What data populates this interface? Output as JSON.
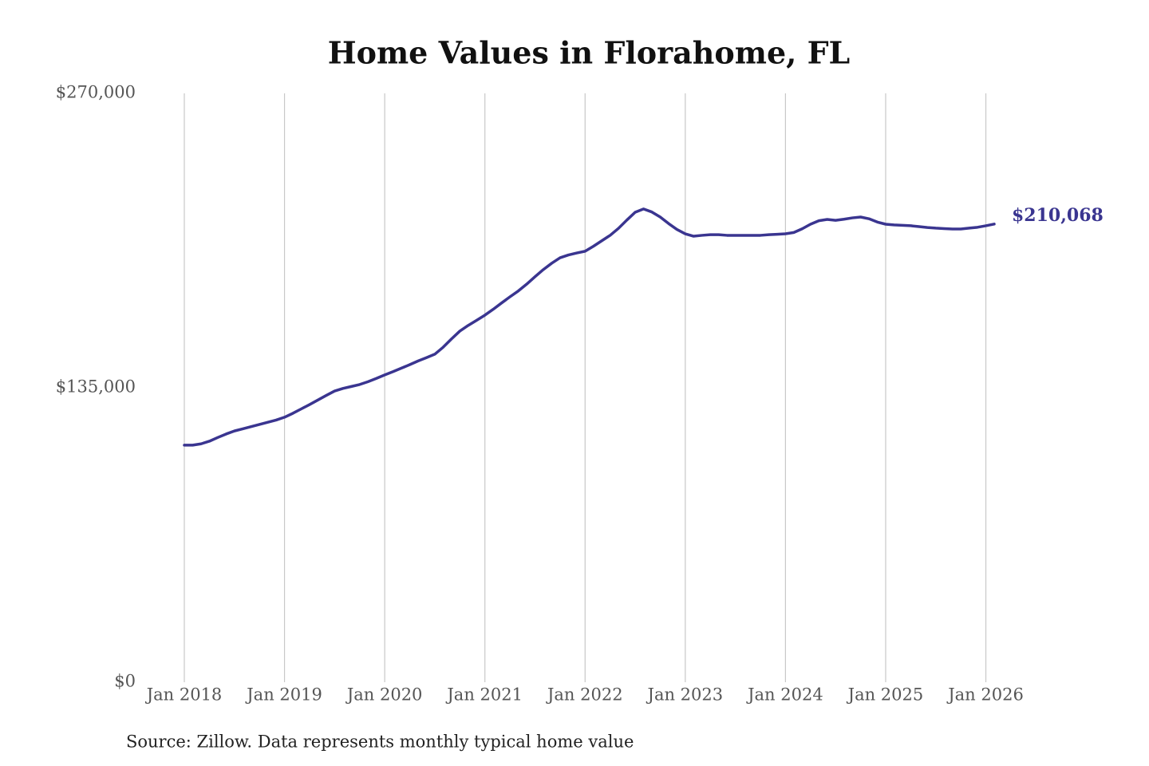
{
  "chart_data": {
    "type": "line",
    "title": "Home Values in Florahome, FL",
    "source": "Source: Zillow. Data represents monthly typical home value",
    "x": [
      "2018-01",
      "2018-02",
      "2018-03",
      "2018-04",
      "2018-05",
      "2018-06",
      "2018-07",
      "2018-08",
      "2018-09",
      "2018-10",
      "2018-11",
      "2018-12",
      "2019-01",
      "2019-02",
      "2019-03",
      "2019-04",
      "2019-05",
      "2019-06",
      "2019-07",
      "2019-08",
      "2019-09",
      "2019-10",
      "2019-11",
      "2019-12",
      "2020-01",
      "2020-02",
      "2020-03",
      "2020-04",
      "2020-05",
      "2020-06",
      "2020-07",
      "2020-08",
      "2020-09",
      "2020-10",
      "2020-11",
      "2020-12",
      "2021-01",
      "2021-02",
      "2021-03",
      "2021-04",
      "2021-05",
      "2021-06",
      "2021-07",
      "2021-08",
      "2021-09",
      "2021-10",
      "2021-11",
      "2021-12",
      "2022-01",
      "2022-02",
      "2022-03",
      "2022-04",
      "2022-05",
      "2022-06",
      "2022-07",
      "2022-08",
      "2022-09",
      "2022-10",
      "2022-11",
      "2022-12",
      "2023-01",
      "2023-02",
      "2023-03",
      "2023-04",
      "2023-05",
      "2023-06",
      "2023-07",
      "2023-08",
      "2023-09",
      "2023-10",
      "2023-11",
      "2023-12",
      "2024-01",
      "2024-02",
      "2024-03",
      "2024-04",
      "2024-05",
      "2024-06",
      "2024-07",
      "2024-08",
      "2024-09",
      "2024-10",
      "2024-11",
      "2024-12",
      "2025-01",
      "2025-02",
      "2025-03",
      "2025-04",
      "2025-05",
      "2025-06",
      "2025-07",
      "2025-08",
      "2025-09",
      "2025-10",
      "2025-11",
      "2025-12",
      "2026-01",
      "2026-02"
    ],
    "series": [
      {
        "color": "#3a3590",
        "values": [
          108700,
          108700,
          109300,
          110500,
          112200,
          113800,
          115200,
          116200,
          117200,
          118200,
          119200,
          120200,
          121500,
          123300,
          125300,
          127300,
          129400,
          131500,
          133500,
          134700,
          135600,
          136500,
          137800,
          139300,
          140900,
          142400,
          144000,
          145600,
          147300,
          148800,
          150400,
          153600,
          157400,
          161000,
          163600,
          165900,
          168300,
          171000,
          173900,
          176700,
          179400,
          182500,
          185900,
          189200,
          192100,
          194600,
          195900,
          196800,
          197600,
          199900,
          202400,
          204900,
          208100,
          211900,
          215500,
          217000,
          215600,
          213300,
          210300,
          207600,
          205600,
          204500,
          204900,
          205200,
          205200,
          204900,
          204900,
          204900,
          204900,
          204900,
          205200,
          205400,
          205600,
          206200,
          207900,
          210000,
          211600,
          212200,
          211800,
          212300,
          212900,
          213300,
          212500,
          211000,
          210000,
          209700,
          209500,
          209300,
          208900,
          208500,
          208200,
          208000,
          207800,
          207800,
          208200,
          208600,
          209300,
          210068
        ]
      }
    ],
    "annotations": [
      {
        "x": "2026-02",
        "value": 210068,
        "label": "$210,068"
      }
    ],
    "xlim": [
      "2018-01",
      "2026-02"
    ],
    "xticks": [
      {
        "value": "2018-01",
        "label": "Jan 2018"
      },
      {
        "value": "2019-01",
        "label": "Jan 2019"
      },
      {
        "value": "2020-01",
        "label": "Jan 2020"
      },
      {
        "value": "2021-01",
        "label": "Jan 2021"
      },
      {
        "value": "2022-01",
        "label": "Jan 2022"
      },
      {
        "value": "2023-01",
        "label": "Jan 2023"
      },
      {
        "value": "2024-01",
        "label": "Jan 2024"
      },
      {
        "value": "2025-01",
        "label": "Jan 2025"
      },
      {
        "value": "2026-01",
        "label": "Jan 2026"
      }
    ],
    "ylim": [
      0,
      270000
    ],
    "yticks": [
      {
        "value": 0,
        "label": "$0"
      },
      {
        "value": 135000,
        "label": "$135,000"
      },
      {
        "value": 270000,
        "label": "$270,000"
      }
    ],
    "grid": "x"
  }
}
